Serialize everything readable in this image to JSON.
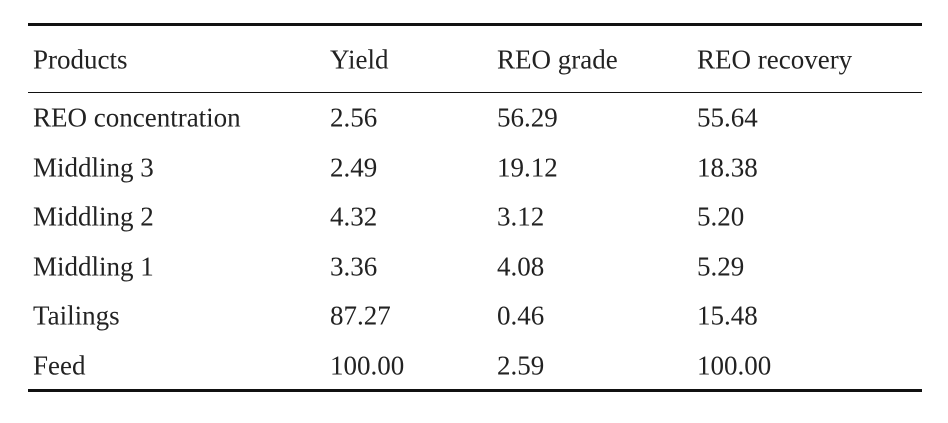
{
  "table": {
    "header": [
      "Products",
      "Yield",
      "REO grade",
      "REO recovery"
    ],
    "rows": [
      [
        "REO concentration",
        "2.56",
        "56.29",
        "55.64"
      ],
      [
        "Middling 3",
        "2.49",
        "19.12",
        "18.38"
      ],
      [
        "Middling 2",
        "4.32",
        "3.12",
        "5.20"
      ],
      [
        "Middling 1",
        "3.36",
        "4.08",
        "5.29"
      ],
      [
        "Tailings",
        "87.27",
        "0.46",
        "15.48"
      ],
      [
        "Feed",
        "100.00",
        "2.59",
        "100.00"
      ]
    ]
  }
}
